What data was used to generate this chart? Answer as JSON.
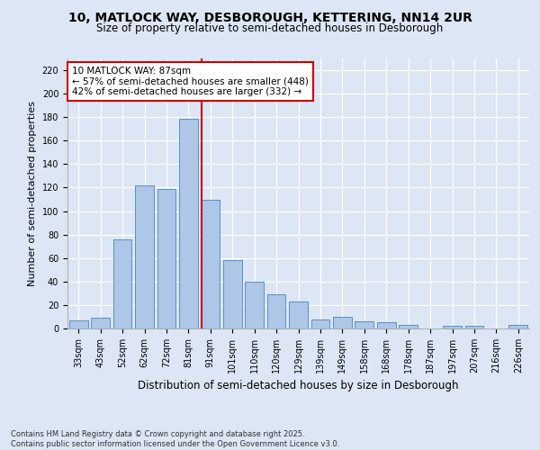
{
  "title1": "10, MATLOCK WAY, DESBOROUGH, KETTERING, NN14 2UR",
  "title2": "Size of property relative to semi-detached houses in Desborough",
  "xlabel": "Distribution of semi-detached houses by size in Desborough",
  "ylabel": "Number of semi-detached properties",
  "categories": [
    "33sqm",
    "43sqm",
    "52sqm",
    "62sqm",
    "72sqm",
    "81sqm",
    "91sqm",
    "101sqm",
    "110sqm",
    "120sqm",
    "129sqm",
    "139sqm",
    "149sqm",
    "158sqm",
    "168sqm",
    "178sqm",
    "187sqm",
    "197sqm",
    "207sqm",
    "216sqm",
    "226sqm"
  ],
  "values": [
    7,
    9,
    76,
    122,
    119,
    179,
    110,
    58,
    40,
    29,
    23,
    8,
    10,
    6,
    5,
    3,
    0,
    2,
    2,
    0,
    3
  ],
  "bar_color": "#aec6e8",
  "bar_edge_color": "#5a8fc2",
  "vline_color": "#cc0000",
  "vline_x_index": 6,
  "annotation_text": "10 MATLOCK WAY: 87sqm\n← 57% of semi-detached houses are smaller (448)\n42% of semi-detached houses are larger (332) →",
  "annotation_box_color": "#ffffff",
  "annotation_box_edge": "#cc0000",
  "footer_text": "Contains HM Land Registry data © Crown copyright and database right 2025.\nContains public sector information licensed under the Open Government Licence v3.0.",
  "ylim": [
    0,
    230
  ],
  "yticks": [
    0,
    20,
    40,
    60,
    80,
    100,
    120,
    140,
    160,
    180,
    200,
    220
  ],
  "background_color": "#dce6f5",
  "plot_background": "#dce6f5",
  "title1_fontsize": 10,
  "title2_fontsize": 8.5,
  "ylabel_fontsize": 8,
  "xlabel_fontsize": 8.5,
  "tick_fontsize": 7,
  "annotation_fontsize": 7.5,
  "footer_fontsize": 6
}
